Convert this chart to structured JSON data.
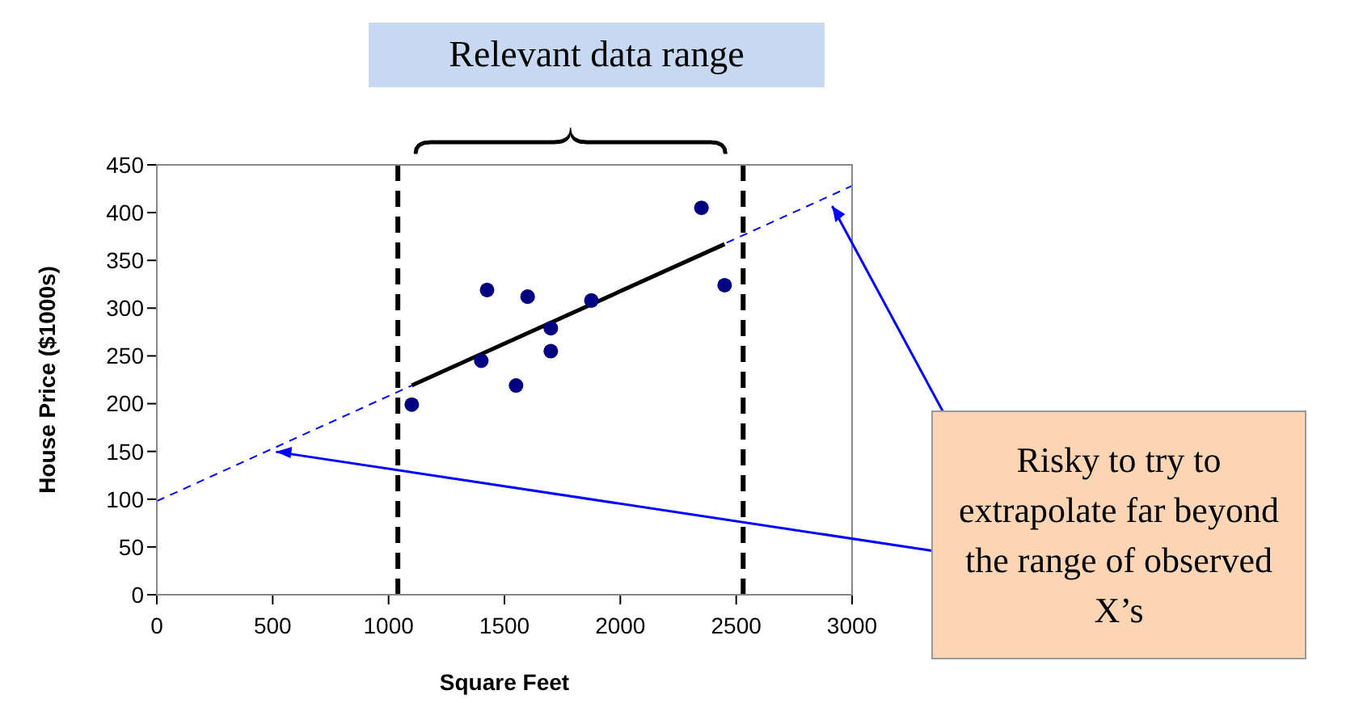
{
  "chart_data": {
    "type": "scatter",
    "xlabel": "Square Feet",
    "ylabel": "House Price ($1000s)",
    "xlim": [
      0,
      3000
    ],
    "xticks": [
      0,
      500,
      1000,
      1500,
      2000,
      2500,
      3000
    ],
    "ylim": [
      0,
      450
    ],
    "yticks": [
      0,
      50,
      100,
      150,
      200,
      250,
      300,
      350,
      400,
      450
    ],
    "legend": false,
    "series": [
      {
        "color": "#000080",
        "marker": "circle",
        "x": [
          1400,
          1600,
          1700,
          1875,
          1100,
          1550,
          2350,
          2450,
          1425,
          1700
        ],
        "values": [
          245,
          312,
          279,
          308,
          199,
          219,
          405,
          324,
          319,
          255
        ]
      },
      {
        "type": "line",
        "color": "#0000ff",
        "line_style": "dashed",
        "marker": "none",
        "x": [
          0,
          3000
        ],
        "values": [
          98,
          428
        ]
      },
      {
        "type": "line",
        "color": "#000000",
        "line_style": "solid",
        "marker": "none",
        "x": [
          1100,
          2450
        ],
        "values": [
          219,
          367
        ]
      }
    ],
    "ref_lines": [
      {
        "axis": "x",
        "value": 1040,
        "color": "#000000",
        "line_style": "dashed"
      },
      {
        "axis": "x",
        "value": 2530,
        "color": "#000000",
        "line_style": "dashed"
      }
    ],
    "annotations": [
      "Relevant data range",
      "Risky to try to extrapolate far beyond the range of observed X’s"
    ]
  }
}
